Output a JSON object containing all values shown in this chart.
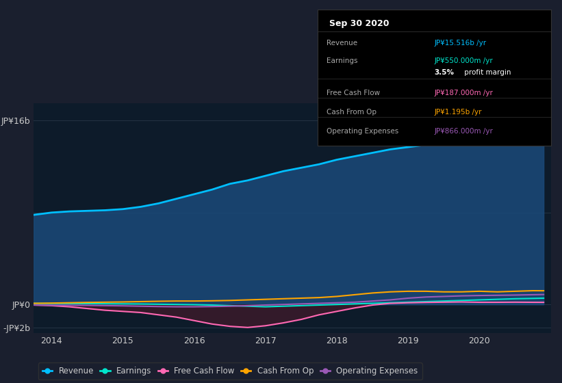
{
  "bg_color": "#1a1f2e",
  "plot_bg_color": "#0d1b2a",
  "years": [
    2013.75,
    2014.0,
    2014.25,
    2014.5,
    2014.75,
    2015.0,
    2015.25,
    2015.5,
    2015.75,
    2016.0,
    2016.25,
    2016.5,
    2016.75,
    2017.0,
    2017.25,
    2017.5,
    2017.75,
    2018.0,
    2018.25,
    2018.5,
    2018.75,
    2019.0,
    2019.25,
    2019.5,
    2019.75,
    2020.0,
    2020.25,
    2020.5,
    2020.75,
    2020.9
  ],
  "revenue": [
    7.8,
    8.0,
    8.1,
    8.15,
    8.2,
    8.3,
    8.5,
    8.8,
    9.2,
    9.6,
    10.0,
    10.5,
    10.8,
    11.2,
    11.6,
    11.9,
    12.2,
    12.6,
    12.9,
    13.2,
    13.5,
    13.7,
    13.9,
    14.2,
    14.6,
    15.0,
    15.2,
    15.4,
    15.5,
    15.516
  ],
  "earnings": [
    0.1,
    0.09,
    0.08,
    0.07,
    0.06,
    0.05,
    0.04,
    0.02,
    0.0,
    -0.02,
    -0.05,
    -0.1,
    -0.15,
    -0.2,
    -0.15,
    -0.1,
    -0.05,
    0.0,
    0.05,
    0.1,
    0.15,
    0.2,
    0.25,
    0.3,
    0.35,
    0.4,
    0.45,
    0.5,
    0.53,
    0.55
  ],
  "free_cash_flow": [
    -0.05,
    -0.1,
    -0.2,
    -0.35,
    -0.5,
    -0.6,
    -0.7,
    -0.9,
    -1.1,
    -1.4,
    -1.7,
    -1.9,
    -2.0,
    -1.85,
    -1.6,
    -1.3,
    -0.9,
    -0.6,
    -0.3,
    -0.05,
    0.1,
    0.15,
    0.18,
    0.2,
    0.22,
    0.19,
    0.19,
    0.2,
    0.19,
    0.187
  ],
  "cash_from_op": [
    0.1,
    0.12,
    0.15,
    0.18,
    0.2,
    0.22,
    0.25,
    0.28,
    0.3,
    0.3,
    0.32,
    0.35,
    0.4,
    0.45,
    0.5,
    0.55,
    0.6,
    0.7,
    0.85,
    1.0,
    1.1,
    1.15,
    1.15,
    1.1,
    1.1,
    1.15,
    1.1,
    1.15,
    1.2,
    1.195
  ],
  "operating_expenses": [
    -0.05,
    -0.06,
    -0.07,
    -0.08,
    -0.1,
    -0.12,
    -0.15,
    -0.18,
    -0.2,
    -0.2,
    -0.18,
    -0.15,
    -0.1,
    -0.05,
    0.0,
    0.05,
    0.1,
    0.15,
    0.2,
    0.3,
    0.4,
    0.55,
    0.65,
    0.7,
    0.75,
    0.78,
    0.8,
    0.82,
    0.85,
    0.866
  ],
  "revenue_color": "#00bfff",
  "earnings_color": "#00e5cc",
  "free_cash_flow_color": "#ff69b4",
  "cash_from_op_color": "#ffa500",
  "operating_expenses_color": "#9b59b6",
  "revenue_fill_color": "#1a4a7a",
  "fcf_fill_color": "#3a1a2a",
  "info_box_title": "Sep 30 2020",
  "info_rows": [
    {
      "label": "Revenue",
      "value": "JP¥15.516b /yr",
      "value_color": "#00bfff",
      "sep_after": false
    },
    {
      "label": "Earnings",
      "value": "JP¥550.000m /yr",
      "value_color": "#00e5cc",
      "sep_after": false
    },
    {
      "label": "",
      "value": "3.5% profit margin",
      "value_color": "#ffffff",
      "sep_after": true,
      "bold_prefix": "3.5%"
    },
    {
      "label": "Free Cash Flow",
      "value": "JP¥187.000m /yr",
      "value_color": "#ff69b4",
      "sep_after": true
    },
    {
      "label": "Cash From Op",
      "value": "JP¥1.195b /yr",
      "value_color": "#ffa500",
      "sep_after": false
    },
    {
      "label": "Operating Expenses",
      "value": "JP¥866.000m /yr",
      "value_color": "#9b59b6",
      "sep_after": false
    }
  ],
  "legend_items": [
    {
      "label": "Revenue",
      "color": "#00bfff"
    },
    {
      "label": "Earnings",
      "color": "#00e5cc"
    },
    {
      "label": "Free Cash Flow",
      "color": "#ff69b4"
    },
    {
      "label": "Cash From Op",
      "color": "#ffa500"
    },
    {
      "label": "Operating Expenses",
      "color": "#9b59b6"
    }
  ],
  "xlim": [
    2013.75,
    2021.0
  ],
  "ylim": [
    -2.5,
    17.5
  ],
  "xticks": [
    2014,
    2015,
    2016,
    2017,
    2018,
    2019,
    2020
  ],
  "ytick_labels": [
    "JP¥16b",
    "JP¥0",
    "-JP¥2b"
  ],
  "ytick_values": [
    16,
    0,
    -2
  ],
  "gridline_values": [
    16,
    8,
    0,
    -2
  ],
  "text_color": "#cccccc",
  "grid_color": "#2a3a4a",
  "sep_color": "#333333"
}
